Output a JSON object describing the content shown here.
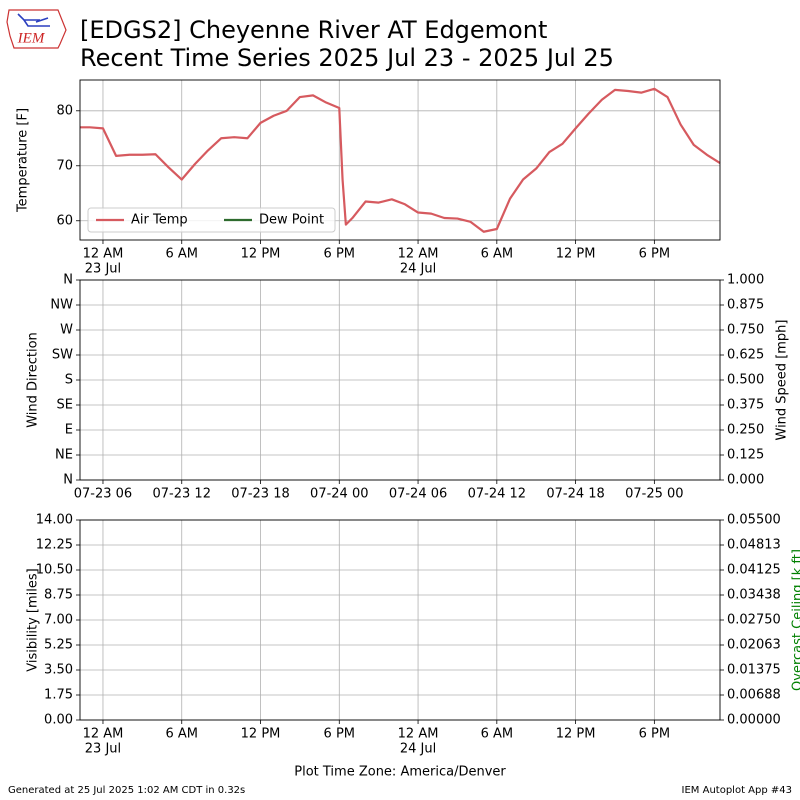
{
  "title": [
    "[EDGS2] Cheyenne River  AT Edgemont",
    "Recent Time Series 2025 Jul 23 - 2025 Jul 25"
  ],
  "logo_text": "IEM",
  "footer_left": "Generated at 25 Jul 2025 1:02 AM CDT in 0.32s",
  "footer_right": "IEM Autoplot App #43",
  "chart_data": [
    {
      "type": "line",
      "ylabel": "Temperature [F]",
      "grid": true,
      "legend": "lower left",
      "xlim": [
        "2025-07-22 22:15",
        "2025-07-24 23:00"
      ],
      "xticks": [
        {
          "value": "2025-07-23 00:00",
          "label": "12 AM",
          "date": "23 Jul"
        },
        {
          "value": "2025-07-23 06:00",
          "label": "6 AM"
        },
        {
          "value": "2025-07-23 12:00",
          "label": "12 PM"
        },
        {
          "value": "2025-07-23 18:00",
          "label": "6 PM"
        },
        {
          "value": "2025-07-24 00:00",
          "label": "12 AM",
          "date": "24 Jul"
        },
        {
          "value": "2025-07-24 06:00",
          "label": "6 AM"
        },
        {
          "value": "2025-07-24 12:00",
          "label": "12 PM"
        },
        {
          "value": "2025-07-24 18:00",
          "label": "6 PM"
        }
      ],
      "ylim": [
        56.5,
        85.6
      ],
      "yticks": [
        60,
        70,
        80
      ],
      "x": [
        "2025-07-22 22:15",
        "2025-07-22 23:00",
        "2025-07-23 00:00",
        "2025-07-23 01:00",
        "2025-07-23 02:00",
        "2025-07-23 03:00",
        "2025-07-23 04:00",
        "2025-07-23 05:00",
        "2025-07-23 06:00",
        "2025-07-23 07:00",
        "2025-07-23 08:00",
        "2025-07-23 09:00",
        "2025-07-23 10:00",
        "2025-07-23 11:00",
        "2025-07-23 12:00",
        "2025-07-23 13:00",
        "2025-07-23 14:00",
        "2025-07-23 15:00",
        "2025-07-23 16:00",
        "2025-07-23 17:00",
        "2025-07-23 18:00",
        "2025-07-23 18:15",
        "2025-07-23 18:30",
        "2025-07-23 19:00",
        "2025-07-23 20:00",
        "2025-07-23 21:00",
        "2025-07-23 22:00",
        "2025-07-23 23:00",
        "2025-07-24 00:00",
        "2025-07-24 01:00",
        "2025-07-24 02:00",
        "2025-07-24 03:00",
        "2025-07-24 04:00",
        "2025-07-24 05:00",
        "2025-07-24 06:00",
        "2025-07-24 07:00",
        "2025-07-24 08:00",
        "2025-07-24 09:00",
        "2025-07-24 10:00",
        "2025-07-24 11:00",
        "2025-07-24 12:00",
        "2025-07-24 13:00",
        "2025-07-24 14:00",
        "2025-07-24 15:00",
        "2025-07-24 16:00",
        "2025-07-24 17:00",
        "2025-07-24 18:00",
        "2025-07-24 19:00",
        "2025-07-24 20:00",
        "2025-07-24 21:00",
        "2025-07-24 22:00",
        "2025-07-24 23:00"
      ],
      "series": [
        {
          "name": "Air Temp",
          "color": "#d65a5f",
          "values": [
            77.0,
            77.0,
            76.8,
            71.8,
            72.0,
            72.0,
            72.1,
            69.7,
            67.5,
            70.3,
            72.8,
            75.0,
            75.2,
            75.0,
            77.8,
            79.1,
            80.0,
            82.5,
            82.8,
            81.5,
            80.5,
            67.5,
            59.3,
            60.5,
            63.5,
            63.3,
            63.9,
            63.0,
            61.5,
            61.3,
            60.5,
            60.4,
            59.8,
            58.0,
            58.5,
            64.0,
            67.5,
            69.5,
            72.5,
            74.0,
            76.8,
            79.5,
            82.0,
            83.8,
            83.6,
            83.3,
            84.0,
            82.5,
            77.5,
            73.8,
            72.0,
            70.5
          ]
        },
        {
          "name": "Dew Point",
          "color": "#2e6b2e",
          "values": [
            null,
            null,
            null,
            null,
            null,
            null,
            null,
            null,
            null,
            null,
            null,
            null,
            null,
            null,
            null,
            null,
            null,
            null,
            null,
            null,
            null,
            null,
            null,
            null,
            null,
            null,
            null,
            null,
            null,
            null,
            null,
            null,
            null,
            null,
            null,
            null,
            null,
            null,
            null,
            null,
            null,
            null,
            null,
            null,
            null,
            null,
            null,
            null,
            null,
            null,
            null,
            null
          ]
        }
      ]
    },
    {
      "type": "line",
      "ylabel": "Wind Direction",
      "y2label": "Wind Speed [mph]",
      "grid": true,
      "xlim": [
        "2025-07-22 22:15",
        "2025-07-24 23:00"
      ],
      "xticks": [
        {
          "value": "2025-07-23 00:00",
          "label": "07-23 06"
        },
        {
          "value": "2025-07-23 06:00",
          "label": "07-23 12"
        },
        {
          "value": "2025-07-23 12:00",
          "label": "07-23 18"
        },
        {
          "value": "2025-07-23 18:00",
          "label": "07-24 00"
        },
        {
          "value": "2025-07-24 00:00",
          "label": "07-24 06"
        },
        {
          "value": "2025-07-24 06:00",
          "label": "07-24 12"
        },
        {
          "value": "2025-07-24 12:00",
          "label": "07-24 18"
        },
        {
          "value": "2025-07-24 18:00",
          "label": "07-25 00"
        }
      ],
      "ylim": [
        0,
        360
      ],
      "yticks": [
        {
          "value": 0,
          "label": "N"
        },
        {
          "value": 45,
          "label": "NE"
        },
        {
          "value": 90,
          "label": "E"
        },
        {
          "value": 135,
          "label": "SE"
        },
        {
          "value": 180,
          "label": "S"
        },
        {
          "value": 225,
          "label": "SW"
        },
        {
          "value": 270,
          "label": "W"
        },
        {
          "value": 315,
          "label": "NW"
        },
        {
          "value": 360,
          "label": "N"
        }
      ],
      "y2lim": [
        0,
        1
      ],
      "y2ticks": [
        {
          "value": 0,
          "label": "0.000"
        },
        {
          "value": 0.125,
          "label": "0.125"
        },
        {
          "value": 0.25,
          "label": "0.250"
        },
        {
          "value": 0.375,
          "label": "0.375"
        },
        {
          "value": 0.5,
          "label": "0.500"
        },
        {
          "value": 0.625,
          "label": "0.625"
        },
        {
          "value": 0.75,
          "label": "0.750"
        },
        {
          "value": 0.875,
          "label": "0.875"
        },
        {
          "value": 1,
          "label": "1.000"
        }
      ]
    },
    {
      "type": "line",
      "ylabel": "Visibility [miles]",
      "y2label": "Overcast Ceiling [k ft]",
      "y2label_color": "#008000",
      "xlabel": "Plot Time Zone: America/Denver",
      "grid": true,
      "xlim": [
        "2025-07-22 22:15",
        "2025-07-24 23:00"
      ],
      "xticks": [
        {
          "value": "2025-07-23 00:00",
          "label": "12 AM",
          "date": "23 Jul"
        },
        {
          "value": "2025-07-23 06:00",
          "label": "6 AM"
        },
        {
          "value": "2025-07-23 12:00",
          "label": "12 PM"
        },
        {
          "value": "2025-07-23 18:00",
          "label": "6 PM"
        },
        {
          "value": "2025-07-24 00:00",
          "label": "12 AM",
          "date": "24 Jul"
        },
        {
          "value": "2025-07-24 06:00",
          "label": "6 AM"
        },
        {
          "value": "2025-07-24 12:00",
          "label": "12 PM"
        },
        {
          "value": "2025-07-24 18:00",
          "label": "6 PM"
        }
      ],
      "ylim": [
        0,
        14
      ],
      "yticks": [
        {
          "value": 0,
          "label": "0.00"
        },
        {
          "value": 1.75,
          "label": "1.75"
        },
        {
          "value": 3.5,
          "label": "3.50"
        },
        {
          "value": 5.25,
          "label": "5.25"
        },
        {
          "value": 7,
          "label": "7.00"
        },
        {
          "value": 8.75,
          "label": "8.75"
        },
        {
          "value": 10.5,
          "label": "10.50"
        },
        {
          "value": 12.25,
          "label": "12.25"
        },
        {
          "value": 14,
          "label": "14.00"
        }
      ],
      "y2lim": [
        0,
        0.055
      ],
      "y2ticks": [
        {
          "value": 0,
          "label": "0.00000"
        },
        {
          "value": 0.006875,
          "label": "0.00688"
        },
        {
          "value": 0.01375,
          "label": "0.01375"
        },
        {
          "value": 0.020625,
          "label": "0.02063"
        },
        {
          "value": 0.0275,
          "label": "0.02750"
        },
        {
          "value": 0.034375,
          "label": "0.03438"
        },
        {
          "value": 0.04125,
          "label": "0.04125"
        },
        {
          "value": 0.048125,
          "label": "0.04813"
        },
        {
          "value": 0.055,
          "label": "0.05500"
        }
      ]
    }
  ]
}
